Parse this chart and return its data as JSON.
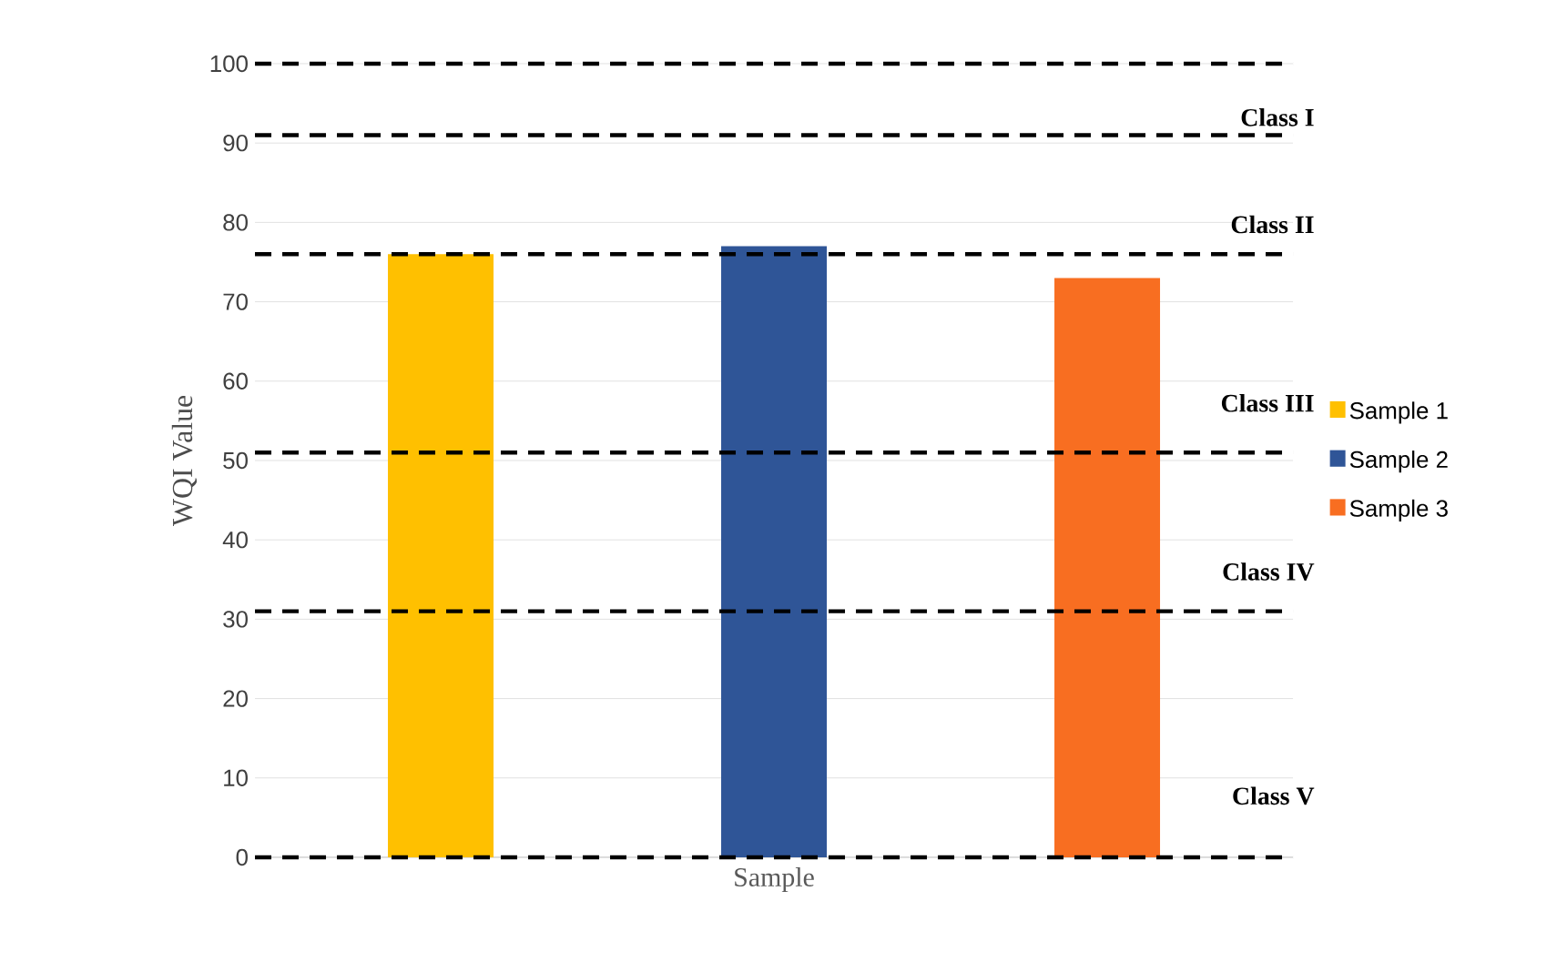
{
  "chart_data": {
    "type": "bar",
    "ylabel": "WQI Value",
    "categories": [
      "Sample"
    ],
    "series": [
      {
        "name": "Sample 1",
        "color": "#ffc000",
        "values": [
          76
        ]
      },
      {
        "name": "Sample 2",
        "color": "#2f5597",
        "values": [
          77
        ]
      },
      {
        "name": "Sample 3",
        "color": "#f86e21",
        "values": [
          73
        ]
      }
    ],
    "ylim": [
      0,
      100
    ],
    "yticks": [
      0,
      10,
      20,
      30,
      40,
      50,
      60,
      70,
      80,
      90,
      100
    ],
    "grid": "y",
    "legend": "right",
    "ref_lines": [
      {
        "axis": "y",
        "value": 100,
        "color": "#000000",
        "line_style": "dashed"
      },
      {
        "axis": "y",
        "value": 91,
        "color": "#000000",
        "line_style": "dashed"
      },
      {
        "axis": "y",
        "value": 76,
        "color": "#000000",
        "line_style": "dashed"
      },
      {
        "axis": "y",
        "value": 51,
        "color": "#000000",
        "line_style": "dashed"
      },
      {
        "axis": "y",
        "value": 31,
        "color": "#000000",
        "line_style": "dashed"
      },
      {
        "axis": "y",
        "value": 0,
        "color": "#000000",
        "line_style": "dashed"
      }
    ],
    "annotations": [
      "Class I",
      "Class II",
      "Class III",
      "Class IV",
      "Class V"
    ]
  }
}
